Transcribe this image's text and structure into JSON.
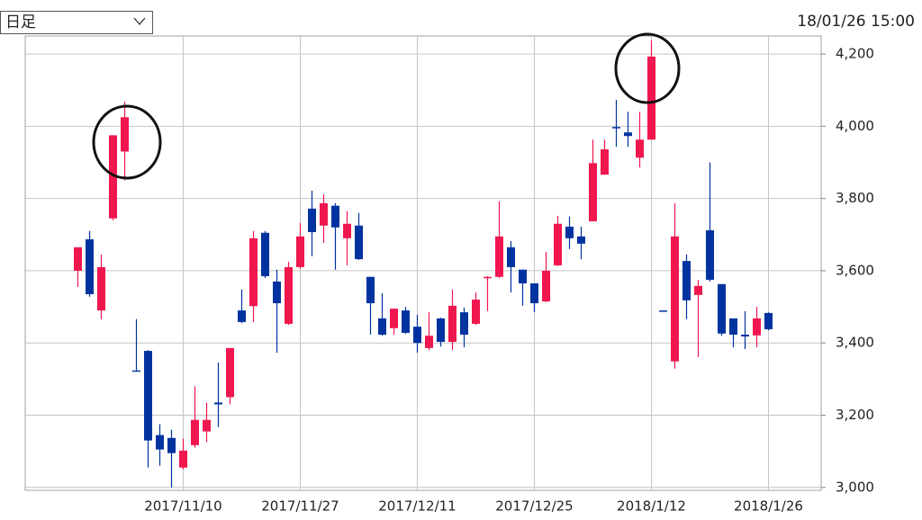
{
  "controls": {
    "period_select": "日足",
    "timestamp": "18/01/26 15:00"
  },
  "chart_data": {
    "type": "candlestick",
    "x": [
      0,
      1,
      2,
      3,
      4,
      5,
      6,
      7,
      8,
      9,
      10,
      11,
      12,
      13,
      14,
      15,
      16,
      17,
      18,
      19,
      20,
      21,
      22,
      23,
      24,
      25,
      26,
      27,
      28,
      29,
      30,
      31,
      32,
      33,
      34,
      35,
      36,
      37,
      38,
      39,
      40,
      41,
      42,
      43,
      44,
      45,
      46,
      47,
      48,
      49,
      50,
      51,
      52,
      53,
      54,
      55,
      56,
      57,
      58,
      59
    ],
    "open": [
      3600,
      3687,
      3490,
      3745,
      3930,
      3324,
      3378,
      3145,
      3137,
      3055,
      3117,
      3155,
      3235,
      3250,
      3490,
      3502,
      3705,
      3570,
      3453,
      3610,
      3772,
      3725,
      3780,
      3690,
      3725,
      3583,
      3468,
      3441,
      3490,
      3445,
      3386,
      3468,
      3403,
      3485,
      3453,
      3580,
      3583,
      3665,
      3603,
      3565,
      3515,
      3615,
      3722,
      3695,
      3737,
      3866,
      3998,
      3983,
      3913,
      3963,
      3490,
      3349,
      3627,
      3533,
      3712,
      3563,
      3468,
      3423,
      3421,
      3483
    ],
    "high": [
      3665,
      3710,
      3645,
      3975,
      4068,
      3466,
      3380,
      3175,
      3160,
      3135,
      3280,
      3235,
      3346,
      3386,
      3548,
      3710,
      3710,
      3603,
      3625,
      3732,
      3822,
      3812,
      3787,
      3765,
      3760,
      3583,
      3538,
      3495,
      3500,
      3478,
      3485,
      3470,
      3548,
      3498,
      3540,
      3585,
      3792,
      3682,
      3603,
      3565,
      3652,
      3752,
      3750,
      3722,
      3963,
      3963,
      4073,
      4040,
      4040,
      4238,
      3490,
      3787,
      3645,
      3575,
      3900,
      3563,
      3468,
      3488,
      3500,
      3485
    ],
    "low": [
      3555,
      3528,
      3465,
      3740,
      3850,
      3324,
      3055,
      3060,
      3000,
      3050,
      3110,
      3125,
      3167,
      3230,
      3455,
      3458,
      3580,
      3373,
      3450,
      3605,
      3640,
      3677,
      3603,
      3615,
      3630,
      3423,
      3420,
      3423,
      3425,
      3373,
      3380,
      3390,
      3380,
      3388,
      3450,
      3488,
      3580,
      3540,
      3503,
      3485,
      3513,
      3613,
      3660,
      3632,
      3737,
      3866,
      3943,
      3943,
      3886,
      3963,
      3490,
      3329,
      3466,
      3361,
      3570,
      3420,
      3388,
      3383,
      3388,
      3435
    ],
    "close": [
      3665,
      3535,
      3610,
      3975,
      4025,
      3324,
      3130,
      3105,
      3095,
      3102,
      3187,
      3187,
      3230,
      3386,
      3458,
      3690,
      3585,
      3510,
      3610,
      3695,
      3707,
      3787,
      3720,
      3730,
      3632,
      3510,
      3423,
      3495,
      3428,
      3400,
      3420,
      3403,
      3503,
      3423,
      3520,
      3583,
      3695,
      3610,
      3565,
      3510,
      3600,
      3730,
      3690,
      3675,
      3898,
      3936,
      3995,
      3973,
      3963,
      4193,
      3490,
      3695,
      3518,
      3558,
      3575,
      3426,
      3423,
      3418,
      3468,
      3438
    ],
    "up_color": "#f0164e",
    "down_color": "#0033a0",
    "xlim": [
      -4.5,
      63.5
    ],
    "xticks": [
      {
        "value": 9,
        "label": "2017/11/10"
      },
      {
        "value": 19,
        "label": "2017/11/27"
      },
      {
        "value": 29,
        "label": "2017/12/11"
      },
      {
        "value": 39,
        "label": "2017/12/25"
      },
      {
        "value": 49,
        "label": "2018/1/12"
      },
      {
        "value": 59,
        "label": "2018/1/26"
      }
    ],
    "ylim": [
      2992,
      4250
    ],
    "yticks": [
      {
        "value": 3000,
        "label": "3,000"
      },
      {
        "value": 3200,
        "label": "3,200"
      },
      {
        "value": 3400,
        "label": "3,400"
      },
      {
        "value": 3600,
        "label": "3,600"
      },
      {
        "value": 3800,
        "label": "3,800"
      },
      {
        "value": 4000,
        "label": "4,000"
      },
      {
        "value": 4200,
        "label": "4,200"
      }
    ],
    "grid": true
  }
}
